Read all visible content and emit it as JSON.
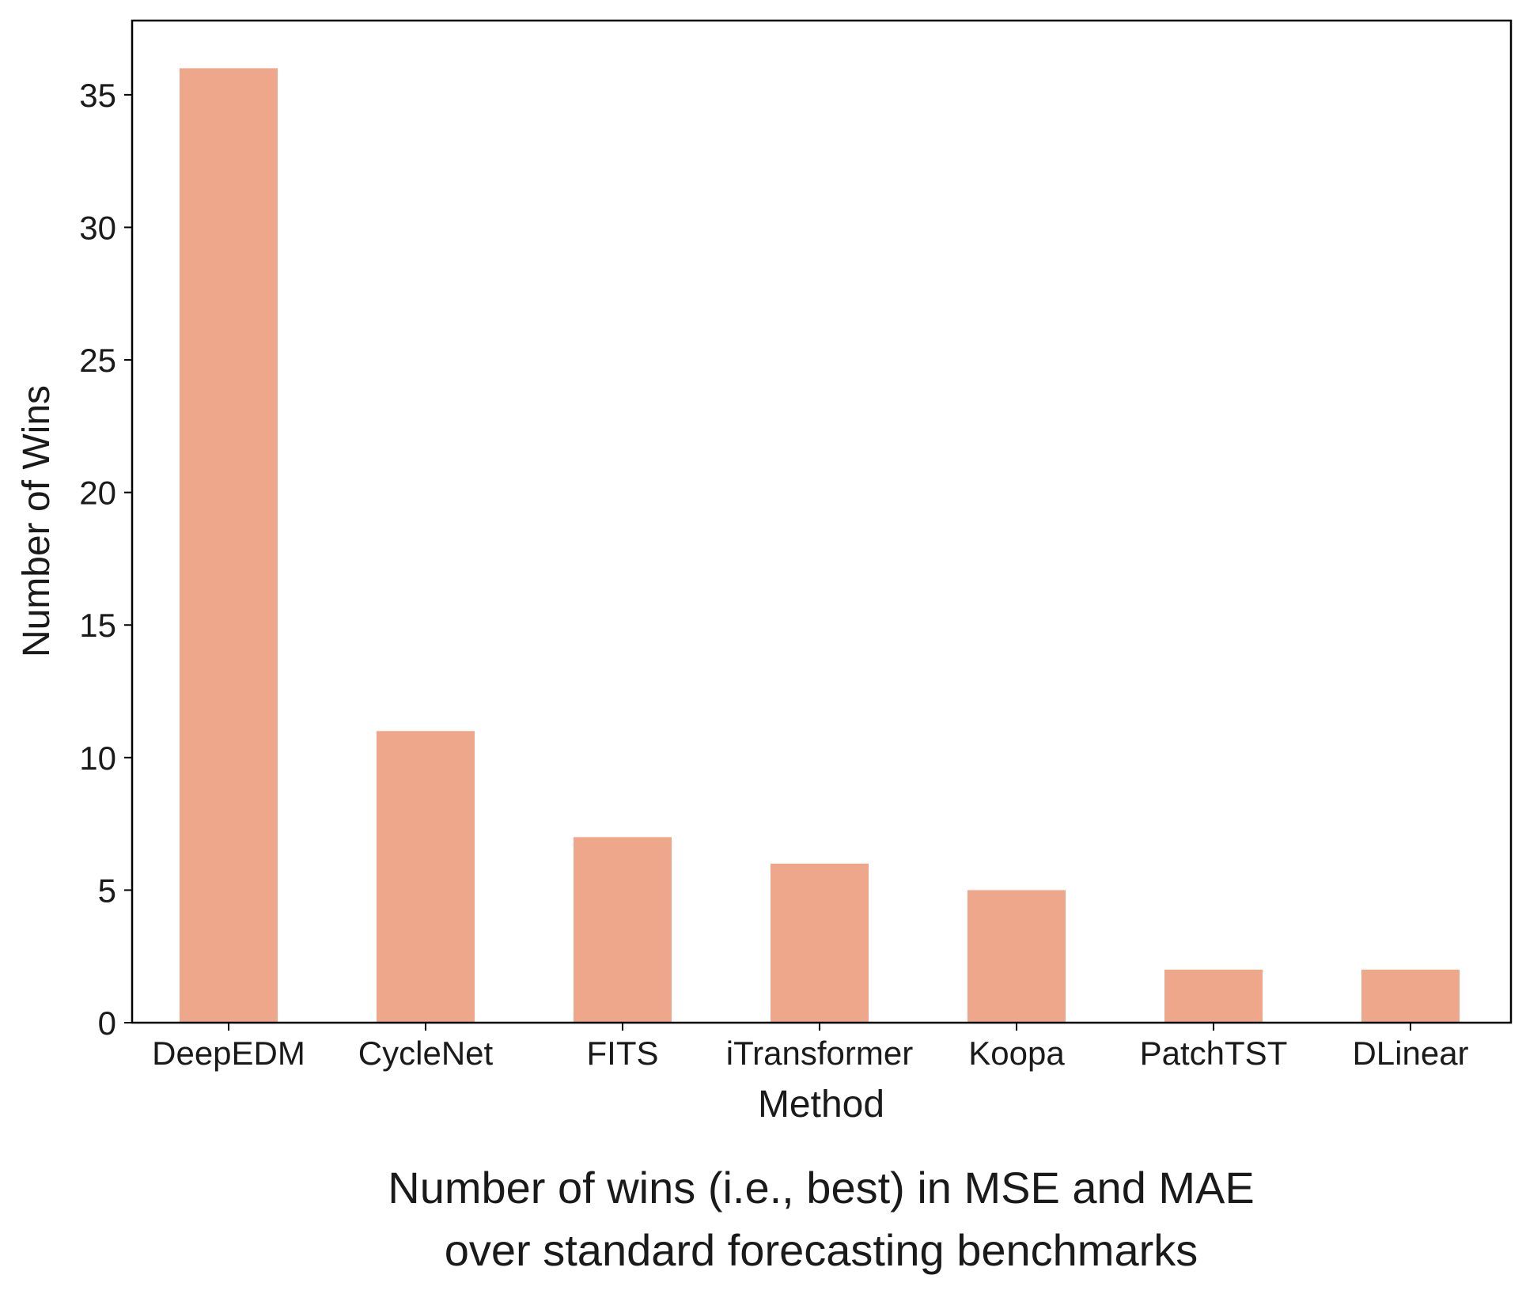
{
  "chart_data": {
    "type": "bar",
    "categories": [
      "DeepEDM",
      "CycleNet",
      "FITS",
      "iTransformer",
      "Koopa",
      "PatchTST",
      "DLinear"
    ],
    "values": [
      36,
      11,
      7,
      6,
      5,
      2,
      2
    ],
    "xlabel": "Method",
    "ylabel": "Number of Wins",
    "ylim": [
      0,
      37.8
    ],
    "yticks": [
      0,
      5,
      10,
      15,
      20,
      25,
      30,
      35
    ],
    "grid": false,
    "legend": "none",
    "bar_color": "#eea78a",
    "caption": [
      "Number of wins (i.e., best) in MSE and MAE",
      "over standard forecasting benchmarks"
    ]
  }
}
